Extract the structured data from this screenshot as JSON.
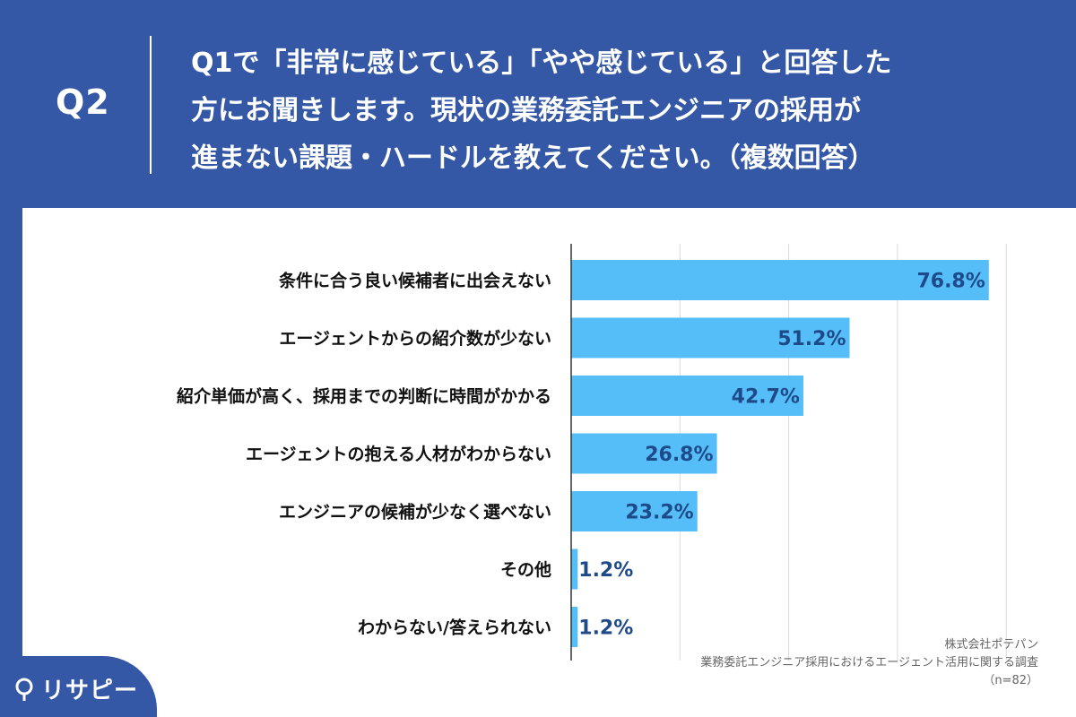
{
  "header": {
    "q_label": "Q2",
    "question_lines": [
      "Q1で「非常に感じている」「やや感じている」と回答した",
      "方にお聞きします。現状の業務委託エンジニアの採用が",
      "進まない課題・ハードルを教えてください。（複数回答）"
    ]
  },
  "footer": {
    "company": "株式会社ポテパン",
    "survey": "業務委託エンジニア採用におけるエージェント活用に関する調査",
    "sample": "（n=82）"
  },
  "logo": {
    "text": "リサピー",
    "icon": "pin-icon"
  },
  "colors": {
    "background": "#3457a6",
    "bar": "#55bef8",
    "value_text": "#1f4a8a",
    "grid": "#d9d9d9"
  },
  "chart_data": {
    "type": "bar",
    "orientation": "horizontal",
    "categories": [
      "条件に合う良い候補者に出会えない",
      "エージェントからの紹介数が少ない",
      "紹介単価が高く、採用までの判断に時間がかかる",
      "エージェントの抱える人材がわからない",
      "エンジニアの候補が少なく選べない",
      "その他",
      "わからない/答えられない"
    ],
    "values": [
      76.8,
      51.2,
      42.7,
      26.8,
      23.2,
      1.2,
      1.2
    ],
    "value_labels": [
      "76.8%",
      "51.2%",
      "42.7%",
      "26.8%",
      "23.2%",
      "1.2%",
      "1.2%"
    ],
    "xlim": [
      0,
      80
    ],
    "grid": true
  }
}
